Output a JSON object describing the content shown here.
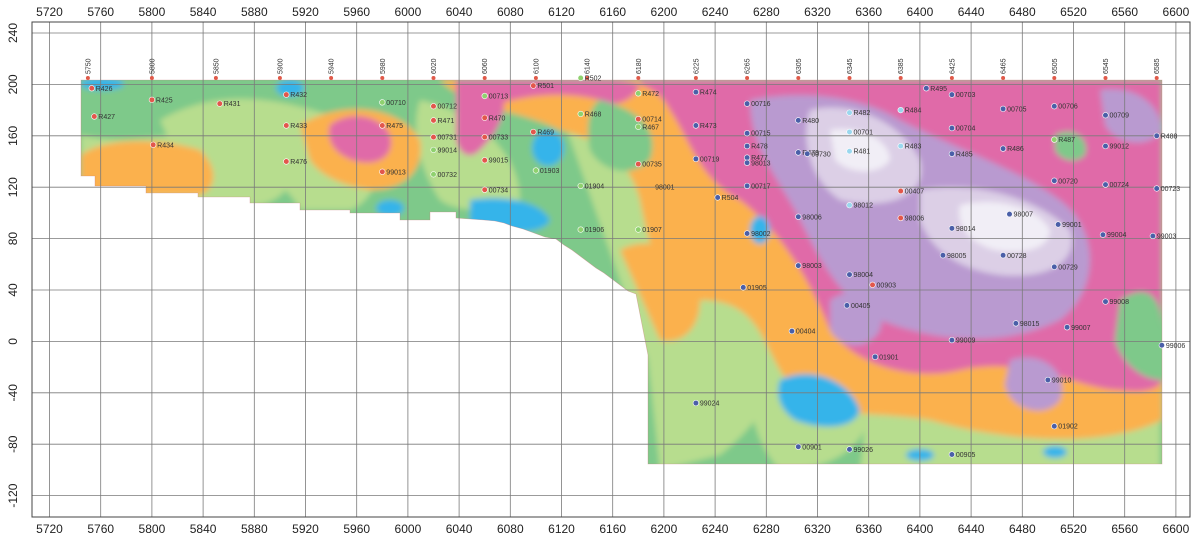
{
  "map": {
    "x_axis": {
      "ticks": [
        "5720",
        "5760",
        "5800",
        "5840",
        "5880",
        "5920",
        "5960",
        "6000",
        "6040",
        "6080",
        "6120",
        "6160",
        "6200",
        "6240",
        "6280",
        "6320",
        "6360",
        "6400",
        "6440",
        "6480",
        "6520",
        "6560",
        "6600"
      ]
    },
    "y_axis": {
      "ticks": [
        "240",
        "200",
        "160",
        "120",
        "80",
        "40",
        "0",
        "-40",
        "-80",
        "-120"
      ]
    },
    "section_lines": [
      {
        "label": "5750",
        "x": 5750
      },
      {
        "label": "5800",
        "x": 5800
      },
      {
        "label": "5850",
        "x": 5850
      },
      {
        "label": "5900",
        "x": 5900
      },
      {
        "label": "5940",
        "x": 5940
      },
      {
        "label": "5980",
        "x": 5980
      },
      {
        "label": "6020",
        "x": 6020
      },
      {
        "label": "6060",
        "x": 6060
      },
      {
        "label": "6100",
        "x": 6100
      },
      {
        "label": "6140",
        "x": 6140
      },
      {
        "label": "6180",
        "x": 6180
      },
      {
        "label": "6225",
        "x": 6225
      },
      {
        "label": "6265",
        "x": 6265
      },
      {
        "label": "6305",
        "x": 6305
      },
      {
        "label": "6345",
        "x": 6345
      },
      {
        "label": "6385",
        "x": 6385
      },
      {
        "label": "6425",
        "x": 6425
      },
      {
        "label": "6465",
        "x": 6465
      },
      {
        "label": "6505",
        "x": 6505
      },
      {
        "label": "6545",
        "x": 6545
      },
      {
        "label": "6585",
        "x": 6585
      }
    ],
    "colors": {
      "green": "#7ec98a",
      "light_green": "#b7dd8e",
      "orange": "#fbb14e",
      "magenta": "#e06aa8",
      "lavender": "#b99ad0",
      "light_lavender": "#dccfe6",
      "pale": "#f1eef6",
      "blue": "#36b4ea",
      "gray_line": "#7a7a7a"
    },
    "holes": [
      {
        "id": "R426",
        "x": 5753,
        "y": 197,
        "c": "red"
      },
      {
        "id": "R427",
        "x": 5755,
        "y": 175,
        "c": "red"
      },
      {
        "id": "R425",
        "x": 5800,
        "y": 188,
        "c": "red"
      },
      {
        "id": "R434",
        "x": 5801,
        "y": 153,
        "c": "red"
      },
      {
        "id": "R431",
        "x": 5853,
        "y": 185,
        "c": "red"
      },
      {
        "id": "R432",
        "x": 5905,
        "y": 192,
        "c": "red"
      },
      {
        "id": "R433",
        "x": 5905,
        "y": 168,
        "c": "red"
      },
      {
        "id": "R476",
        "x": 5905,
        "y": 140,
        "c": "red"
      },
      {
        "id": "00710",
        "x": 5980,
        "y": 186,
        "c": "green"
      },
      {
        "id": "R475",
        "x": 5980,
        "y": 168,
        "c": "red"
      },
      {
        "id": "99013",
        "x": 5980,
        "y": 132,
        "c": "red"
      },
      {
        "id": "00712",
        "x": 6020,
        "y": 183,
        "c": "red"
      },
      {
        "id": "R471",
        "x": 6020,
        "y": 172,
        "c": "red"
      },
      {
        "id": "00731",
        "x": 6020,
        "y": 159,
        "c": "red"
      },
      {
        "id": "99014",
        "x": 6020,
        "y": 149,
        "c": "green"
      },
      {
        "id": "00732",
        "x": 6020,
        "y": 130,
        "c": "green"
      },
      {
        "id": "00713",
        "x": 6060,
        "y": 191,
        "c": "green"
      },
      {
        "id": "R470",
        "x": 6060,
        "y": 174,
        "c": "red"
      },
      {
        "id": "00733",
        "x": 6060,
        "y": 159,
        "c": "red"
      },
      {
        "id": "99015",
        "x": 6060,
        "y": 141,
        "c": "red"
      },
      {
        "id": "00734",
        "x": 6060,
        "y": 118,
        "c": "red"
      },
      {
        "id": "R501",
        "x": 6098,
        "y": 199,
        "c": "red"
      },
      {
        "id": "R469",
        "x": 6098,
        "y": 163,
        "c": "red"
      },
      {
        "id": "01903",
        "x": 6100,
        "y": 133,
        "c": "green"
      },
      {
        "id": "R502",
        "x": 6135,
        "y": 205,
        "c": "green"
      },
      {
        "id": "R468",
        "x": 6135,
        "y": 177,
        "c": "green"
      },
      {
        "id": "01904",
        "x": 6135,
        "y": 121,
        "c": "green"
      },
      {
        "id": "01906",
        "x": 6135,
        "y": 87,
        "c": "green"
      },
      {
        "id": "R472",
        "x": 6180,
        "y": 193,
        "c": "green"
      },
      {
        "id": "00714",
        "x": 6180,
        "y": 173,
        "c": "red"
      },
      {
        "id": "R467",
        "x": 6180,
        "y": 167,
        "c": "green"
      },
      {
        "id": "00735",
        "x": 6180,
        "y": 138,
        "c": "red"
      },
      {
        "id": "98001",
        "x": 6190,
        "y": 120,
        "c": "none"
      },
      {
        "id": "01907",
        "x": 6180,
        "y": 87,
        "c": "green"
      },
      {
        "id": "R474",
        "x": 6225,
        "y": 194,
        "c": "blue"
      },
      {
        "id": "R473",
        "x": 6225,
        "y": 168,
        "c": "blue"
      },
      {
        "id": "00719",
        "x": 6225,
        "y": 142,
        "c": "blue"
      },
      {
        "id": "R504",
        "x": 6242,
        "y": 112,
        "c": "blue"
      },
      {
        "id": "99024",
        "x": 6225,
        "y": -48,
        "c": "blue"
      },
      {
        "id": "00716",
        "x": 6265,
        "y": 185,
        "c": "blue"
      },
      {
        "id": "00715",
        "x": 6265,
        "y": 162,
        "c": "blue"
      },
      {
        "id": "R478",
        "x": 6265,
        "y": 152,
        "c": "blue"
      },
      {
        "id": "R477",
        "x": 6265,
        "y": 143,
        "c": "blue"
      },
      {
        "id": "98013",
        "x": 6265,
        "y": 139,
        "c": "blue"
      },
      {
        "id": "00717",
        "x": 6265,
        "y": 121,
        "c": "blue"
      },
      {
        "id": "98002",
        "x": 6265,
        "y": 84,
        "c": "blue"
      },
      {
        "id": "01905",
        "x": 6262,
        "y": 42,
        "c": "blue"
      },
      {
        "id": "R480",
        "x": 6305,
        "y": 172,
        "c": "blue"
      },
      {
        "id": "R479",
        "x": 6305,
        "y": 147,
        "c": "blue"
      },
      {
        "id": "00730",
        "x": 6312,
        "y": 146,
        "c": "blue"
      },
      {
        "id": "98006",
        "x": 6305,
        "y": 97,
        "c": "blue"
      },
      {
        "id": "98003",
        "x": 6305,
        "y": 59,
        "c": "blue"
      },
      {
        "id": "00404",
        "x": 6300,
        "y": 8,
        "c": "blue"
      },
      {
        "id": "00901",
        "x": 6305,
        "y": -82,
        "c": "blue"
      },
      {
        "id": "R482",
        "x": 6345,
        "y": 178,
        "c": "cyan"
      },
      {
        "id": "00701",
        "x": 6345,
        "y": 163,
        "c": "cyan"
      },
      {
        "id": "R481",
        "x": 6345,
        "y": 148,
        "c": "cyan"
      },
      {
        "id": "98012",
        "x": 6345,
        "y": 106,
        "c": "cyan"
      },
      {
        "id": "98004",
        "x": 6345,
        "y": 52,
        "c": "blue"
      },
      {
        "id": "00405",
        "x": 6343,
        "y": 28,
        "c": "blue"
      },
      {
        "id": "99026",
        "x": 6345,
        "y": -84,
        "c": "blue"
      },
      {
        "id": "00903",
        "x": 6363,
        "y": 44,
        "c": "red"
      },
      {
        "id": "01901",
        "x": 6365,
        "y": -12,
        "c": "blue"
      },
      {
        "id": "R484",
        "x": 6385,
        "y": 180,
        "c": "cyan"
      },
      {
        "id": "R483",
        "x": 6385,
        "y": 152,
        "c": "cyan"
      },
      {
        "id": "00407",
        "x": 6385,
        "y": 117,
        "c": "red"
      },
      {
        "id": "98006",
        "x": 6385,
        "y": 96,
        "c": "red"
      },
      {
        "id": "R495",
        "x": 6405,
        "y": 197,
        "c": "blue"
      },
      {
        "id": "00703",
        "x": 6425,
        "y": 192,
        "c": "blue"
      },
      {
        "id": "00704",
        "x": 6425,
        "y": 166,
        "c": "blue"
      },
      {
        "id": "R485",
        "x": 6425,
        "y": 146,
        "c": "blue"
      },
      {
        "id": "98014",
        "x": 6425,
        "y": 88,
        "c": "blue"
      },
      {
        "id": "98005",
        "x": 6418,
        "y": 67,
        "c": "blue"
      },
      {
        "id": "99009",
        "x": 6425,
        "y": 1,
        "c": "blue"
      },
      {
        "id": "00905",
        "x": 6425,
        "y": -88,
        "c": "blue"
      },
      {
        "id": "00705",
        "x": 6465,
        "y": 181,
        "c": "blue"
      },
      {
        "id": "R486",
        "x": 6465,
        "y": 150,
        "c": "blue"
      },
      {
        "id": "98007",
        "x": 6470,
        "y": 99,
        "c": "blue"
      },
      {
        "id": "00728",
        "x": 6465,
        "y": 67,
        "c": "blue"
      },
      {
        "id": "98015",
        "x": 6475,
        "y": 14,
        "c": "blue"
      },
      {
        "id": "00706",
        "x": 6505,
        "y": 183,
        "c": "blue"
      },
      {
        "id": "R487",
        "x": 6505,
        "y": 157,
        "c": "green"
      },
      {
        "id": "00720",
        "x": 6505,
        "y": 125,
        "c": "blue"
      },
      {
        "id": "99001",
        "x": 6508,
        "y": 91,
        "c": "blue"
      },
      {
        "id": "00729",
        "x": 6505,
        "y": 58,
        "c": "blue"
      },
      {
        "id": "99007",
        "x": 6515,
        "y": 11,
        "c": "blue"
      },
      {
        "id": "99010",
        "x": 6500,
        "y": -30,
        "c": "blue"
      },
      {
        "id": "01902",
        "x": 6505,
        "y": -66,
        "c": "blue"
      },
      {
        "id": "00709",
        "x": 6545,
        "y": 176,
        "c": "blue"
      },
      {
        "id": "99012",
        "x": 6545,
        "y": 152,
        "c": "blue"
      },
      {
        "id": "00724",
        "x": 6545,
        "y": 122,
        "c": "blue"
      },
      {
        "id": "99004",
        "x": 6543,
        "y": 83,
        "c": "blue"
      },
      {
        "id": "99008",
        "x": 6545,
        "y": 31,
        "c": "blue"
      },
      {
        "id": "R488",
        "x": 6585,
        "y": 160,
        "c": "blue"
      },
      {
        "id": "00723",
        "x": 6585,
        "y": 119,
        "c": "blue"
      },
      {
        "id": "99003",
        "x": 6582,
        "y": 82,
        "c": "blue"
      },
      {
        "id": "99006",
        "x": 6589,
        "y": -3,
        "c": "blue"
      }
    ]
  }
}
